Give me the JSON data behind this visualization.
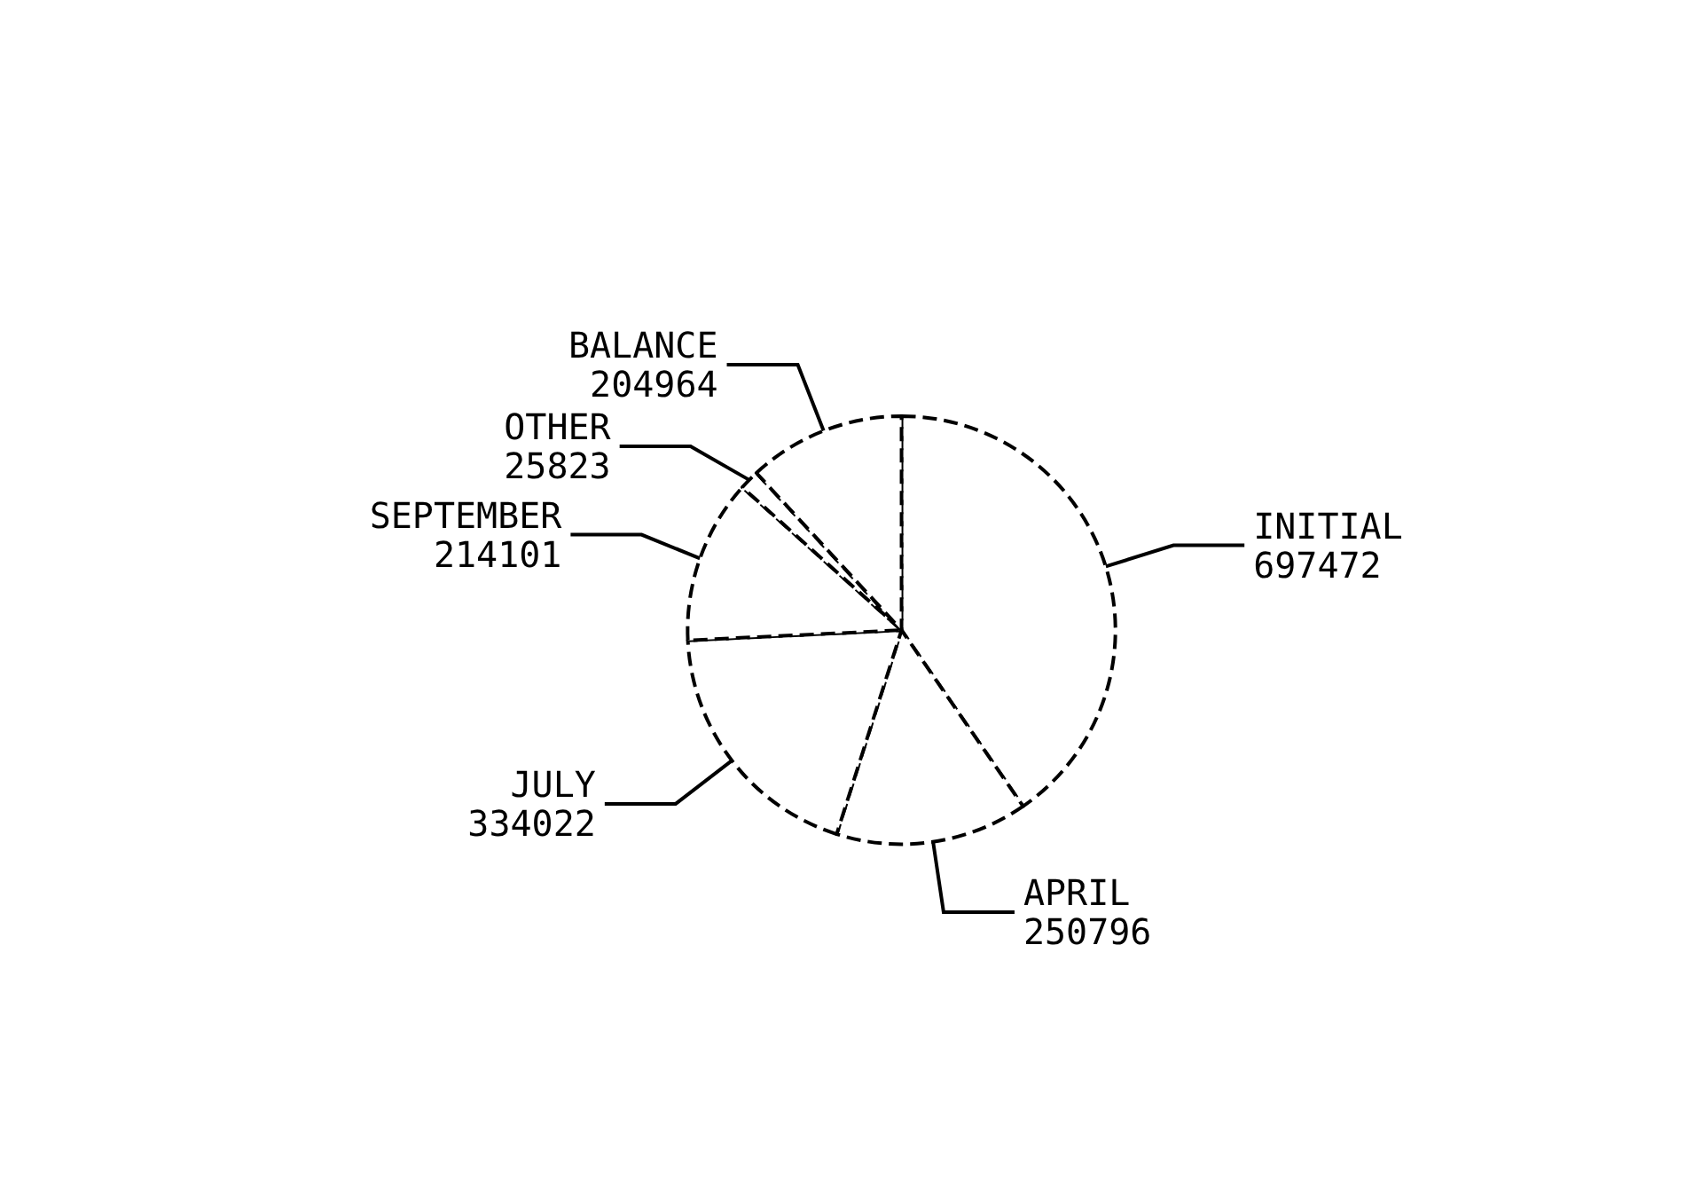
{
  "chart_data": {
    "type": "pie",
    "categories": [
      "INITIAL",
      "APRIL",
      "JULY",
      "SEPTEMBER",
      "OTHER",
      "BALANCE"
    ],
    "values": [
      697472,
      250796,
      334022,
      214101,
      25823,
      204964
    ],
    "colors": [
      "#ffffff",
      "#ffffff",
      "#ffffff",
      "#ffffff",
      "#ffffff",
      "#ffffff"
    ],
    "data_labels": true,
    "legend": false
  }
}
